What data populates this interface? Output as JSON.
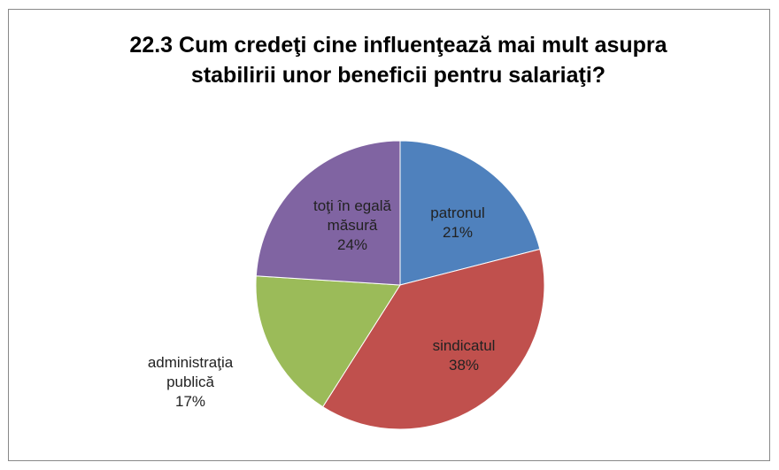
{
  "chart_data": {
    "type": "pie",
    "title": "22.3 Cum credeţi cine influenţează mai mult asupra stabilirii unor beneficii pentru salariaţi?",
    "categories": [
      "patronul",
      "sindicatul",
      "administraţia publică",
      "toţi în egală măsură"
    ],
    "values": [
      21,
      38,
      17,
      24
    ],
    "value_labels": [
      "21%",
      "38%",
      "17%",
      "24%"
    ],
    "colors": [
      "#4f81bd",
      "#c0504d",
      "#9bbb59",
      "#8064a2"
    ]
  }
}
